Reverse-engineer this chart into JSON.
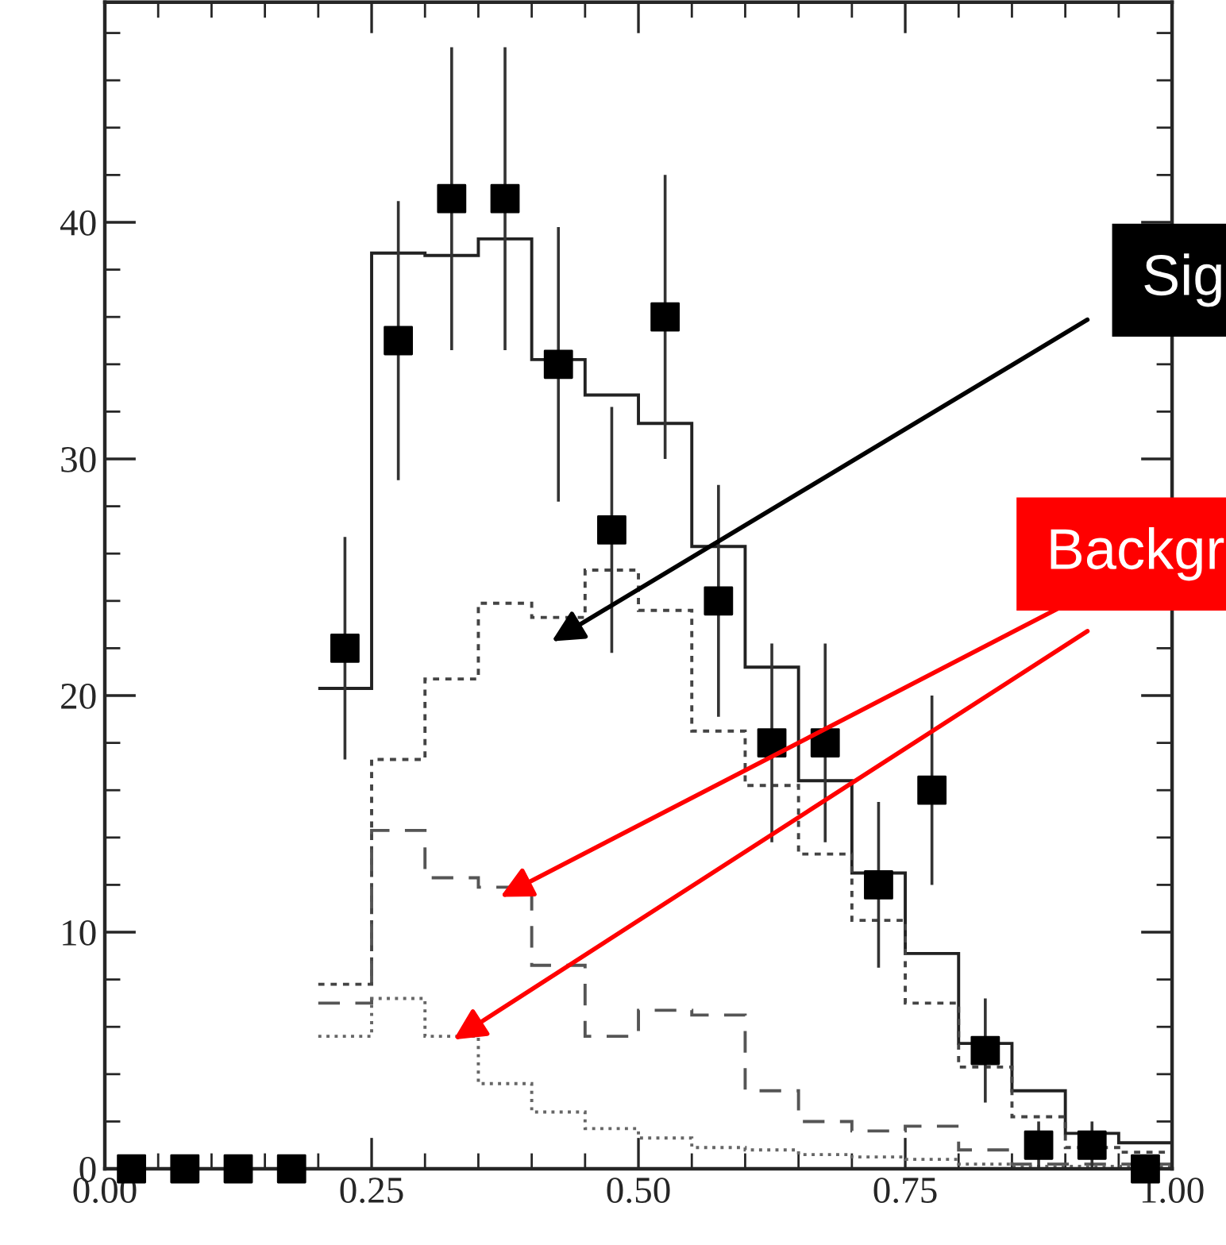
{
  "chart_data": {
    "type": "histogram",
    "bins": [
      0.2,
      0.25,
      0.3,
      0.35,
      0.4,
      0.45,
      0.5,
      0.55,
      0.6,
      0.65,
      0.7,
      0.75,
      0.8,
      0.85,
      0.9,
      0.95,
      1.0
    ],
    "series": [
      {
        "type": "histogram",
        "color": "#222222",
        "line_style": "solid",
        "values": [
          20.3,
          38.7,
          38.6,
          39.3,
          34.2,
          32.7,
          31.5,
          26.3,
          21.2,
          16.4,
          12.5,
          9.1,
          5.3,
          3.3,
          1.5,
          1.1
        ]
      },
      {
        "type": "histogram",
        "color": "#444444",
        "line_style": "dashed",
        "values": [
          7.8,
          17.3,
          20.7,
          23.9,
          23.3,
          25.3,
          23.6,
          18.5,
          16.2,
          13.3,
          10.5,
          7.0,
          4.3,
          2.2,
          0.9,
          0.7
        ]
      },
      {
        "type": "histogram",
        "color": "#555555",
        "line_style": "dashed",
        "values": [
          7.0,
          14.3,
          12.3,
          11.9,
          8.6,
          5.6,
          6.7,
          6.5,
          3.3,
          2.0,
          1.6,
          1.8,
          0.8,
          0.2,
          0.2,
          0.2
        ]
      },
      {
        "type": "histogram",
        "color": "#666666",
        "line_style": "dotted",
        "values": [
          5.6,
          7.2,
          5.6,
          3.6,
          2.4,
          1.7,
          1.3,
          0.9,
          0.8,
          0.6,
          0.5,
          0.4,
          0.2,
          0.1,
          0.1,
          0.1
        ]
      },
      {
        "type": "scatter",
        "color": "#000000",
        "marker": "square",
        "x": [
          0.025,
          0.075,
          0.125,
          0.175,
          0.225,
          0.275,
          0.325,
          0.375,
          0.425,
          0.475,
          0.525,
          0.575,
          0.625,
          0.675,
          0.725,
          0.775,
          0.825,
          0.875,
          0.925,
          0.975
        ],
        "values": [
          0,
          0,
          0,
          0,
          22,
          35,
          41,
          41,
          34,
          27,
          36,
          24,
          18,
          18,
          12,
          16,
          5,
          1,
          1,
          0
        ],
        "errors": [
          null,
          null,
          null,
          null,
          4.7,
          5.9,
          6.4,
          6.4,
          5.8,
          5.2,
          6.0,
          4.9,
          4.2,
          4.2,
          3.5,
          4.0,
          2.2,
          1.0,
          1.0,
          null
        ]
      }
    ],
    "xlim": [
      0,
      1
    ],
    "ylim": [
      0,
      49.3
    ],
    "xticks": [
      {
        "value": 0,
        "label": "0.00"
      },
      {
        "value": 0.25,
        "label": "0.25"
      },
      {
        "value": 0.5,
        "label": "0.50"
      },
      {
        "value": 0.75,
        "label": "0.75"
      },
      {
        "value": 1,
        "label": "1.00"
      }
    ],
    "yticks": [
      0,
      10,
      20,
      30,
      40
    ],
    "grid": false,
    "legend": false,
    "annotations": [
      "Sig",
      "Backgr"
    ]
  }
}
